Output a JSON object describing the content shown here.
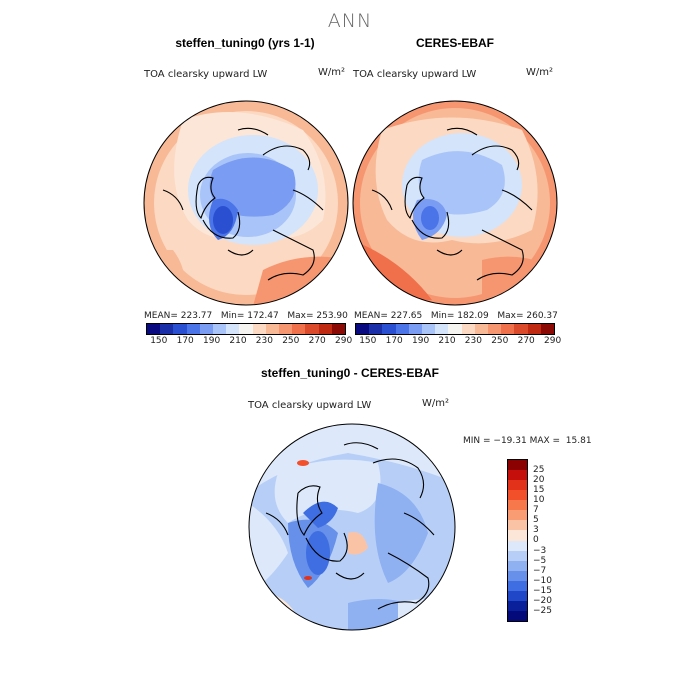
{
  "figure_title": "ANN",
  "panels": [
    {
      "title": "steffen_tuning0 (yrs 1-1)",
      "variable": "TOA clearsky upward LW",
      "units": "W/m²",
      "stats": {
        "mean_label": "MEAN=",
        "mean": "223.77",
        "min_label": "Min=",
        "min": "172.47",
        "max_label": "Max=",
        "max": "253.90"
      }
    },
    {
      "title": "CERES-EBAF",
      "variable": "TOA clearsky upward LW",
      "units": "W/m²",
      "stats": {
        "mean_label": "MEAN=",
        "mean": "227.65",
        "min_label": "Min=",
        "min": "182.09",
        "max_label": "Max=",
        "max": "260.37"
      }
    },
    {
      "title": "steffen_tuning0 - CERES-EBAF",
      "variable": "TOA clearsky upward LW",
      "units": "W/m²",
      "stats_text": "MIN = −19.31 MAX =  15.81"
    }
  ],
  "colorbar_main": {
    "labels": [
      "150",
      "170",
      "190",
      "210",
      "230",
      "250",
      "270",
      "290"
    ],
    "colors": [
      "#0a0a80",
      "#1a2fa8",
      "#2a4fd0",
      "#4a74e8",
      "#7a9cf2",
      "#a9c4f8",
      "#d3e4fb",
      "#f6f4f0",
      "#fcd9c2",
      "#f8b996",
      "#f69670",
      "#ef704a",
      "#db4a2a",
      "#c02a12",
      "#8c0a05"
    ]
  },
  "colorbar_diff": {
    "labels": [
      "25",
      "20",
      "15",
      "10",
      "7",
      "5",
      "3",
      "0",
      "−3",
      "−5",
      "−7",
      "−10",
      "−15",
      "−20",
      "−25"
    ],
    "colors": [
      "#8b0000",
      "#c40f0a",
      "#e2321a",
      "#f2502a",
      "#f7784b",
      "#f99c73",
      "#fbc3a6",
      "#fbe6d8",
      "#dde9fa",
      "#b7cff7",
      "#8fb1f2",
      "#6690ea",
      "#3f6ee2",
      "#1f47c8",
      "#0a1f9a",
      "#050a7a"
    ]
  }
}
